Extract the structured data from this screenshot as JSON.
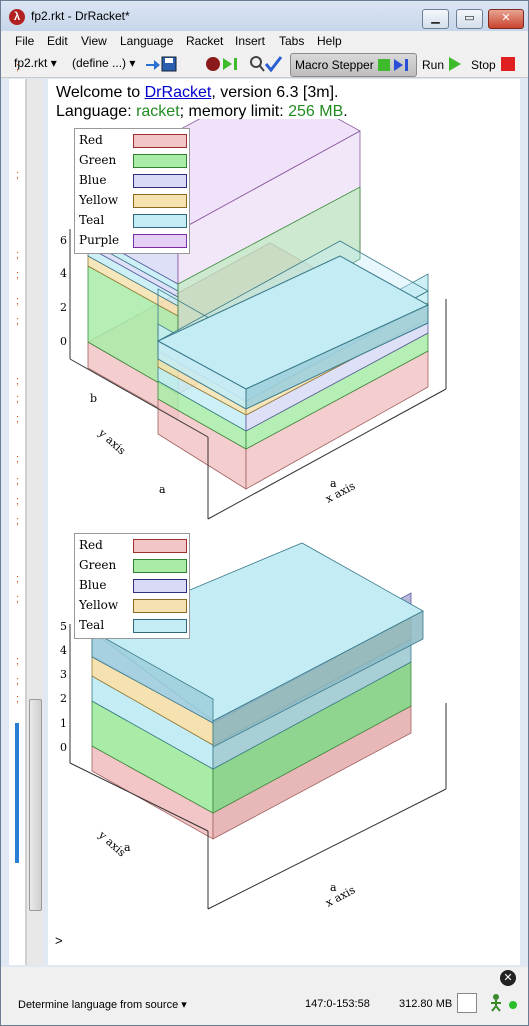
{
  "window": {
    "title": "fp2.rkt - DrRacket*"
  },
  "menu": [
    "File",
    "Edit",
    "View",
    "Language",
    "Racket",
    "Insert",
    "Tabs",
    "Help"
  ],
  "toolbar": {
    "file_label": "fp2.rkt",
    "define_label": "(define ...)",
    "macro_stepper": "Macro Stepper",
    "run": "Run",
    "stop": "Stop"
  },
  "welcome": {
    "line1_pre": "Welcome to ",
    "link": "DrRacket",
    "line1_post": ", version 6.3 [3m].",
    "line2_pre": "Language: ",
    "language": "racket",
    "line2_mid": "; memory limit: ",
    "memory": "256 MB",
    "line2_post": "."
  },
  "gutter_marks": [
    ";",
    ";",
    ";",
    ";",
    ";",
    ";",
    ";",
    ";",
    ";",
    ";",
    ";",
    ";",
    ";",
    ";",
    ";",
    ";",
    ";",
    ";"
  ],
  "colors": {
    "Red": "#f2c6c6",
    "Green": "#a8eca8",
    "Blue": "#d8daf6",
    "Yellow": "#f5e2b0",
    "Teal": "#c4ecf4",
    "Purple": "#e6cff4"
  },
  "plot1": {
    "legend": [
      "Red",
      "Green",
      "Blue",
      "Yellow",
      "Teal",
      "Purple"
    ],
    "z_ticks": [
      "0",
      "2",
      "4",
      "6"
    ],
    "x_tick": "a",
    "y_ticks": [
      "a",
      "b"
    ],
    "x_label": "x axis",
    "y_label": "y axis"
  },
  "plot2": {
    "legend": [
      "Red",
      "Green",
      "Blue",
      "Yellow",
      "Teal"
    ],
    "z_ticks": [
      "0",
      "1",
      "2",
      "3",
      "4",
      "5"
    ],
    "x_tick": "a",
    "y_tick": "a",
    "x_label": "x axis",
    "y_label": "y axis"
  },
  "prompt": ">",
  "status": {
    "language": "Determine language from source",
    "position": "147:0-153:58",
    "memory": "312.80 MB"
  }
}
